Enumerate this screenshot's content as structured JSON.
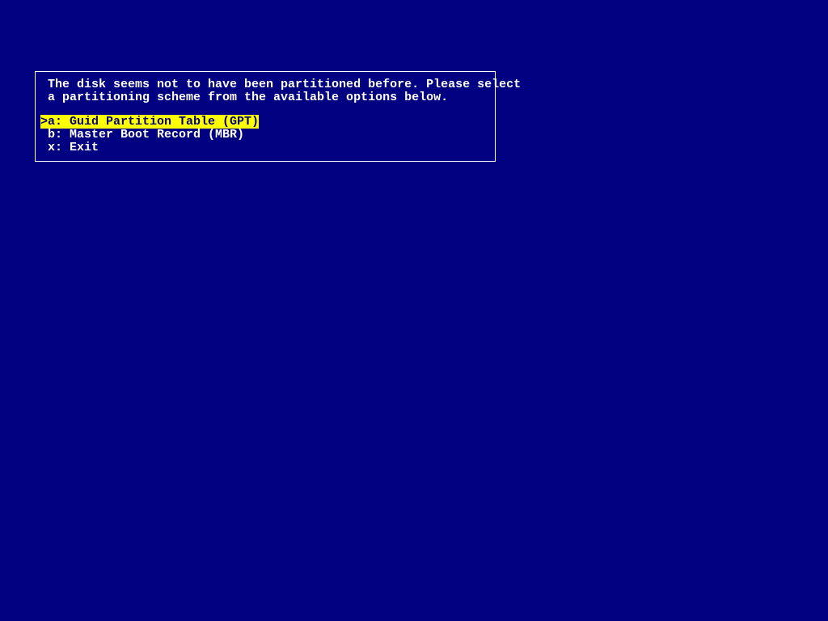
{
  "colors": {
    "background": "#000080",
    "text": "#ffffff",
    "border": "#ffffff",
    "highlight_bg": "#ffff00",
    "highlight_fg": "#000080"
  },
  "dialog": {
    "prompt_line1": " The disk seems not to have been partitioned before. Please select",
    "prompt_line2": " a partitioning scheme from the available options below.",
    "options": [
      {
        "key": "a",
        "label": "Guid Partition Table (GPT)",
        "selected": true,
        "marker": ">",
        "full_text": "a: Guid Partition Table (GPT)"
      },
      {
        "key": "b",
        "label": "Master Boot Record (MBR)",
        "selected": false,
        "marker": " ",
        "full_text": " b: Master Boot Record (MBR)"
      },
      {
        "key": "x",
        "label": "Exit",
        "selected": false,
        "marker": " ",
        "full_text": " x: Exit"
      }
    ]
  }
}
